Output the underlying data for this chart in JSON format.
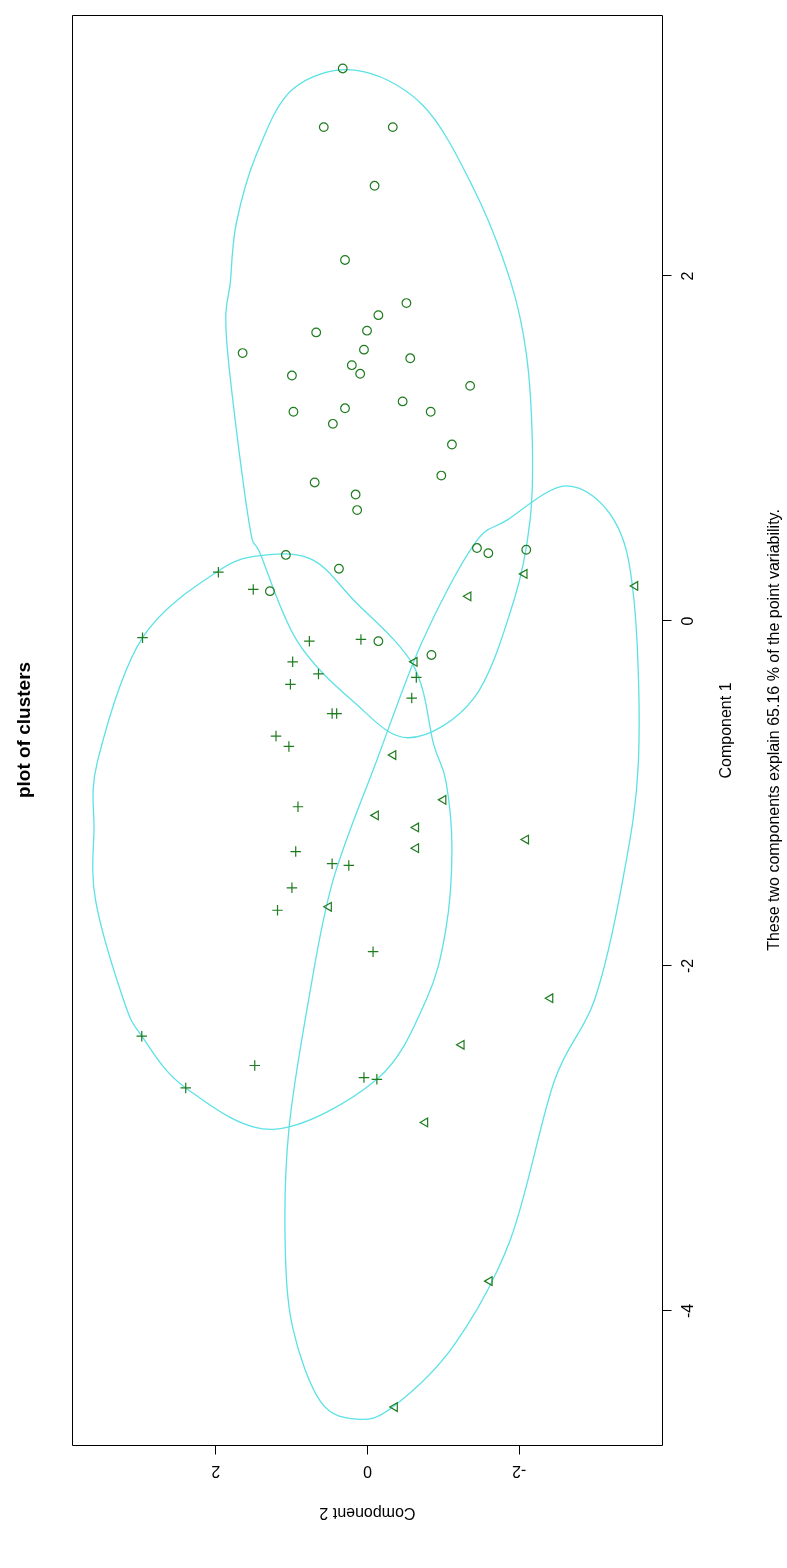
{
  "chart_data": {
    "type": "scatter",
    "title": "plot of clusters",
    "xlabel": "Component 2",
    "ylabel": "Component 1",
    "annotations": [
      "These two components explain 65.16 % of the point variability."
    ],
    "xlim": [
      3.89,
      -3.89
    ],
    "ylim": [
      -4.78,
      3.51
    ],
    "xticks": [
      -2,
      0,
      2
    ],
    "yticks": [
      -4,
      -2,
      0,
      2
    ],
    "series": [
      {
        "type": "scatter",
        "marker": "circle",
        "color": "#1e7b1e",
        "values": [
          3.2,
          2.86,
          2.86,
          2.52,
          2.09,
          1.84,
          1.77,
          1.67,
          1.68,
          1.55,
          1.57,
          1.52,
          1.48,
          1.43,
          1.36,
          1.42,
          1.21,
          1.23,
          1.27,
          1.21,
          1.14,
          1.02,
          0.8,
          0.84,
          0.73,
          0.64,
          0.38,
          0.3,
          0.17,
          -0.12,
          -0.2,
          0.42,
          0.39,
          0.41
        ],
        "x": [
          0.32,
          0.57,
          -0.34,
          -0.1,
          0.29,
          -0.52,
          -0.15,
          0.67,
          0.0,
          1.64,
          0.04,
          -0.57,
          0.2,
          0.09,
          -1.36,
          0.99,
          0.97,
          0.29,
          -0.47,
          -0.84,
          0.45,
          -1.12,
          0.69,
          -0.98,
          0.15,
          0.13,
          1.07,
          0.37,
          1.28,
          -0.15,
          -0.85,
          -1.45,
          -1.6,
          -2.1
        ]
      },
      {
        "type": "scatter",
        "marker": "cross",
        "color": "#1e7b1e",
        "values": [
          0.28,
          0.18,
          -0.1,
          -0.12,
          -0.11,
          -0.24,
          -0.31,
          -0.37,
          -0.33,
          -0.45,
          -0.54,
          -0.54,
          -0.67,
          -0.73,
          -1.08,
          -1.34,
          -1.41,
          -1.42,
          -1.55,
          -1.68,
          -1.92,
          -2.41,
          -2.58,
          -2.71,
          -2.65,
          -2.66
        ],
        "x": [
          1.96,
          1.5,
          2.96,
          0.76,
          0.08,
          0.98,
          0.64,
          1.01,
          -0.65,
          -0.59,
          0.46,
          0.4,
          1.2,
          1.03,
          0.91,
          0.94,
          0.46,
          0.24,
          0.99,
          1.18,
          -0.08,
          2.97,
          1.48,
          2.39,
          0.04,
          -0.13
        ]
      },
      {
        "type": "scatter",
        "marker": "triangle",
        "color": "#1e7b1e",
        "values": [
          0.27,
          0.14,
          0.2,
          -0.24,
          -0.78,
          -1.04,
          -1.13,
          -1.2,
          -1.32,
          -1.27,
          -1.66,
          -2.19,
          -2.46,
          -2.91,
          -3.83,
          -4.56
        ],
        "x": [
          -2.06,
          -1.32,
          -3.52,
          -0.61,
          -0.33,
          -0.99,
          -0.1,
          -0.63,
          -0.63,
          -2.08,
          0.52,
          -2.4,
          -1.23,
          -0.75,
          -1.6,
          -0.35
        ]
      }
    ]
  }
}
